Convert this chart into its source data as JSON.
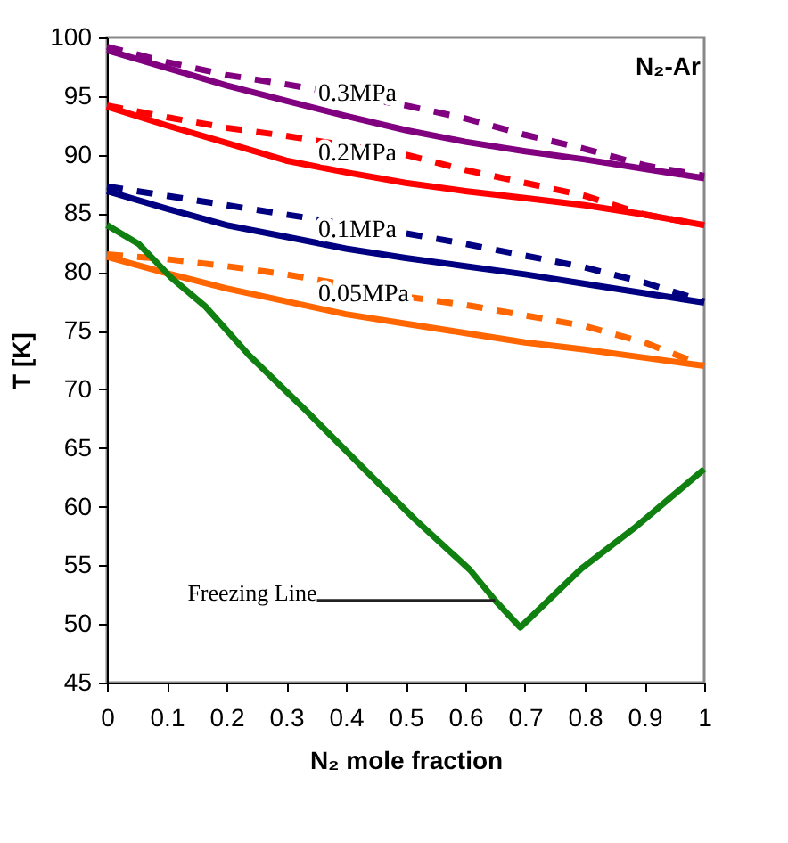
{
  "chart_data": {
    "type": "line",
    "xlabel": "N₂ mole fraction",
    "ylabel": "T [K]",
    "x": [
      0,
      0.1,
      0.2,
      0.3,
      0.4,
      0.5,
      0.6,
      0.7,
      0.8,
      0.9,
      1
    ],
    "xlim": [
      0,
      1
    ],
    "xticks": [
      0,
      0.1,
      0.2,
      0.3,
      0.4,
      0.5,
      0.6,
      0.7,
      0.8,
      0.9,
      1
    ],
    "ylim": [
      45,
      100
    ],
    "yticks": [
      45,
      50,
      55,
      60,
      65,
      70,
      75,
      80,
      85,
      90,
      95,
      100
    ],
    "grid": false,
    "marker": "none",
    "series": [
      {
        "name": "0.3MPa",
        "color": "#800080",
        "line_style": "solid",
        "values": [
          98.9,
          97.4,
          95.9,
          94.6,
          93.3,
          92.1,
          91.1,
          90.3,
          89.6,
          88.8,
          88.0
        ]
      },
      {
        "color": "#800080",
        "line_style": "dashed",
        "values": [
          99.2,
          97.9,
          96.8,
          96.0,
          95.1,
          94.2,
          93.1,
          91.7,
          90.5,
          89.1,
          88.2
        ]
      },
      {
        "name": "0.2MPa",
        "color": "#ff0000",
        "line_style": "solid",
        "values": [
          94.1,
          92.5,
          91.0,
          89.5,
          88.5,
          87.6,
          86.9,
          86.3,
          85.7,
          84.9,
          84.0
        ]
      },
      {
        "color": "#ff0000",
        "line_style": "dashed",
        "values": [
          94.2,
          93.2,
          92.3,
          91.6,
          90.8,
          90.0,
          88.7,
          87.6,
          86.5,
          84.9,
          84.0
        ]
      },
      {
        "name": "0.1MPa",
        "color": "#000080",
        "line_style": "solid",
        "values": [
          86.9,
          85.4,
          84.0,
          83.0,
          82.0,
          81.2,
          80.5,
          79.8,
          79.0,
          78.2,
          77.4
        ]
      },
      {
        "color": "#000080",
        "line_style": "dashed",
        "values": [
          87.3,
          86.5,
          85.7,
          84.9,
          84.1,
          83.3,
          82.4,
          81.4,
          80.4,
          79.1,
          77.5
        ]
      },
      {
        "name": "0.05MPa",
        "color": "#ff6600",
        "line_style": "solid",
        "values": [
          81.3,
          79.9,
          78.6,
          77.5,
          76.4,
          75.6,
          74.8,
          74.0,
          73.4,
          72.7,
          72.0
        ]
      },
      {
        "color": "#ff6600",
        "line_style": "dashed",
        "values": [
          81.5,
          81.1,
          80.5,
          79.8,
          78.9,
          77.9,
          77.2,
          76.3,
          75.4,
          74.0,
          72.0
        ]
      },
      {
        "color": "#108010",
        "line_style": "solid",
        "x": [
          0,
          0.053,
          0.108,
          0.164,
          0.238,
          0.331,
          0.423,
          0.516,
          0.608,
          0.65,
          0.692,
          0.794,
          0.886,
          1
        ],
        "values": [
          84.0,
          82.4,
          79.5,
          77.1,
          72.9,
          68.3,
          63.6,
          58.9,
          54.6,
          52.0,
          49.7,
          54.7,
          58.3,
          63.2
        ]
      }
    ],
    "annotations": [
      "N₂-Ar",
      {
        "text": "Freezing Line",
        "x": 0.65,
        "y": 52.0
      }
    ]
  }
}
